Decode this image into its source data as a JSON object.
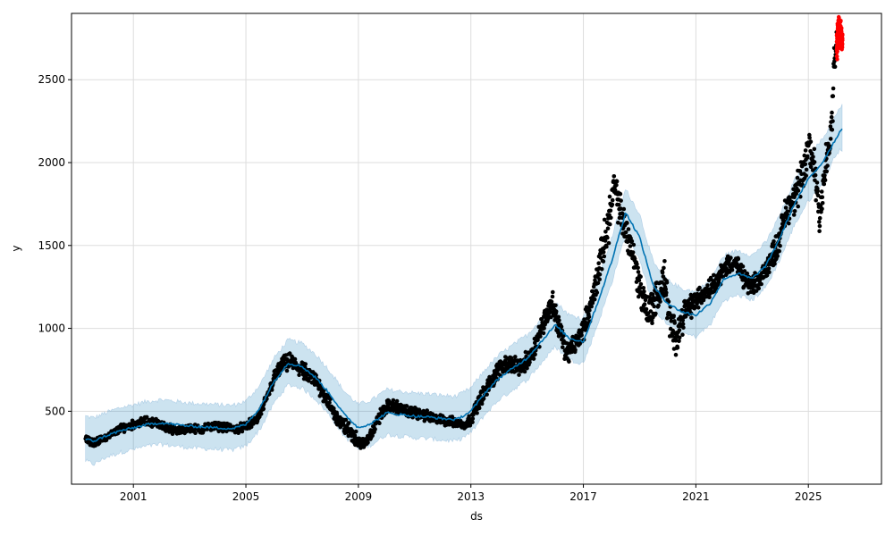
{
  "chart_data": {
    "type": "line",
    "title": "",
    "xlabel": "ds",
    "ylabel": "y",
    "x_tick_labels": [
      "2001",
      "2005",
      "2009",
      "2013",
      "2017",
      "2021",
      "2025"
    ],
    "x_tick_years": [
      2001,
      2005,
      2009,
      2013,
      2017,
      2021,
      2025
    ],
    "y_tick_values": [
      500,
      1000,
      1500,
      2000,
      2500
    ],
    "y_tick_labels": [
      "500",
      "1000",
      "1500",
      "2000",
      "2500"
    ],
    "xlim": [
      1998.8,
      2027.6
    ],
    "ylim": [
      60,
      2900
    ],
    "grid": true,
    "colors": {
      "forecast_line": "#0072b2",
      "uncertainty_band": "#0072b2",
      "observed_points": "#000000",
      "holdout_points": "#ff0000"
    },
    "series": [
      {
        "kind": "forecast",
        "x": [
          1999.3,
          1999.6,
          2000.0,
          2000.5,
          2001.0,
          2001.5,
          2002.0,
          2002.5,
          2003.0,
          2003.5,
          2004.0,
          2004.5,
          2005.0,
          2005.5,
          2006.0,
          2006.5,
          2007.0,
          2007.5,
          2008.0,
          2008.5,
          2009.0,
          2009.5,
          2010.0,
          2010.5,
          2011.0,
          2011.5,
          2012.0,
          2012.5,
          2013.0,
          2013.5,
          2014.0,
          2014.5,
          2015.0,
          2015.5,
          2016.0,
          2016.5,
          2017.0,
          2017.5,
          2018.0,
          2018.5,
          2019.0,
          2019.5,
          2020.0,
          2020.5,
          2021.0,
          2021.5,
          2022.0,
          2022.5,
          2023.0,
          2023.5,
          2024.0,
          2024.5,
          2025.0,
          2025.5,
          2026.0,
          2026.2
        ],
        "yhat": [
          330,
          320,
          350,
          380,
          400,
          420,
          430,
          420,
          410,
          405,
          400,
          395,
          420,
          520,
          680,
          790,
          770,
          700,
          600,
          480,
          400,
          430,
          490,
          480,
          470,
          465,
          455,
          450,
          500,
          610,
          700,
          760,
          820,
          920,
          1020,
          940,
          920,
          1150,
          1400,
          1700,
          1550,
          1250,
          1150,
          1100,
          1080,
          1150,
          1300,
          1330,
          1300,
          1380,
          1550,
          1750,
          1900,
          2000,
          2150,
          2210
        ],
        "yhat_lower": [
          200,
          180,
          220,
          250,
          270,
          290,
          300,
          290,
          280,
          275,
          270,
          265,
          290,
          390,
          550,
          660,
          640,
          570,
          470,
          350,
          270,
          300,
          360,
          350,
          340,
          335,
          325,
          320,
          370,
          480,
          570,
          630,
          690,
          790,
          890,
          810,
          790,
          1020,
          1270,
          1570,
          1420,
          1120,
          1020,
          970,
          950,
          1020,
          1170,
          1200,
          1170,
          1250,
          1420,
          1620,
          1770,
          1870,
          2060,
          2080
        ],
        "yhat_upper": [
          470,
          460,
          490,
          520,
          540,
          560,
          570,
          560,
          550,
          545,
          540,
          535,
          560,
          660,
          820,
          930,
          910,
          840,
          740,
          620,
          540,
          570,
          630,
          620,
          610,
          605,
          595,
          590,
          640,
          750,
          840,
          900,
          960,
          1060,
          1160,
          1080,
          1060,
          1290,
          1540,
          1840,
          1690,
          1390,
          1290,
          1240,
          1220,
          1290,
          1440,
          1470,
          1440,
          1520,
          1690,
          1890,
          2040,
          2140,
          2290,
          2350
        ]
      },
      {
        "kind": "observed",
        "x": [
          1999.3,
          1999.6,
          2000.0,
          2000.3,
          2000.6,
          2001.0,
          2001.4,
          2001.8,
          2002.2,
          2002.6,
          2003.0,
          2003.4,
          2003.8,
          2004.2,
          2004.6,
          2005.0,
          2005.4,
          2005.7,
          2006.0,
          2006.3,
          2006.6,
          2006.9,
          2007.2,
          2007.5,
          2007.8,
          2008.1,
          2008.4,
          2008.7,
          2009.0,
          2009.2,
          2009.5,
          2009.8,
          2010.1,
          2010.4,
          2010.7,
          2011.0,
          2011.3,
          2011.6,
          2011.9,
          2012.2,
          2012.5,
          2012.8,
          2013.0,
          2013.2,
          2013.5,
          2013.8,
          2014.1,
          2014.4,
          2014.7,
          2015.0,
          2015.3,
          2015.6,
          2015.9,
          2016.1,
          2016.4,
          2016.7,
          2017.0,
          2017.3,
          2017.6,
          2017.9,
          2018.1,
          2018.4,
          2018.7,
          2019.0,
          2019.3,
          2019.6,
          2019.9,
          2020.1,
          2020.3,
          2020.6,
          2020.9,
          2021.2,
          2021.5,
          2021.8,
          2022.1,
          2022.4,
          2022.7,
          2023.0,
          2023.3,
          2023.6,
          2023.9,
          2024.2,
          2024.5,
          2024.8,
          2025.0,
          2025.2,
          2025.4,
          2025.6,
          2025.8,
          2025.9,
          2026.0
        ],
        "y": [
          330,
          310,
          340,
          370,
          400,
          420,
          440,
          430,
          400,
          380,
          400,
          390,
          410,
          405,
          390,
          410,
          450,
          560,
          700,
          780,
          800,
          760,
          720,
          680,
          600,
          500,
          420,
          380,
          320,
          300,
          380,
          480,
          540,
          520,
          500,
          490,
          480,
          460,
          450,
          440,
          430,
          420,
          450,
          530,
          620,
          700,
          780,
          790,
          760,
          800,
          900,
          1050,
          1150,
          1030,
          850,
          900,
          1000,
          1150,
          1400,
          1650,
          1850,
          1650,
          1500,
          1250,
          1100,
          1180,
          1300,
          1000,
          950,
          1100,
          1150,
          1200,
          1250,
          1300,
          1380,
          1400,
          1300,
          1250,
          1300,
          1400,
          1500,
          1700,
          1800,
          1900,
          2100,
          2000,
          1700,
          1950,
          2150,
          2500,
          2750
        ],
        "y_spread": [
          25,
          25,
          25,
          25,
          30,
          30,
          30,
          30,
          30,
          30,
          30,
          30,
          30,
          30,
          30,
          30,
          35,
          40,
          50,
          55,
          60,
          60,
          60,
          60,
          60,
          60,
          60,
          55,
          45,
          40,
          45,
          45,
          45,
          45,
          40,
          40,
          40,
          35,
          35,
          35,
          35,
          35,
          40,
          50,
          55,
          60,
          60,
          60,
          60,
          70,
          80,
          90,
          90,
          90,
          80,
          70,
          80,
          100,
          130,
          150,
          140,
          130,
          120,
          130,
          130,
          130,
          140,
          150,
          120,
          100,
          80,
          70,
          70,
          70,
          70,
          70,
          70,
          70,
          70,
          80,
          100,
          110,
          130,
          150,
          160,
          160,
          160,
          160,
          170,
          180,
          100
        ]
      },
      {
        "kind": "holdout",
        "x": [
          2026.02,
          2026.05,
          2026.08,
          2026.11,
          2026.14,
          2026.17,
          2026.2
        ],
        "y": [
          2700,
          2780,
          2820,
          2750,
          2800,
          2760,
          2730
        ],
        "y_spread": [
          80,
          60,
          60,
          70,
          60,
          60,
          50
        ]
      }
    ]
  }
}
